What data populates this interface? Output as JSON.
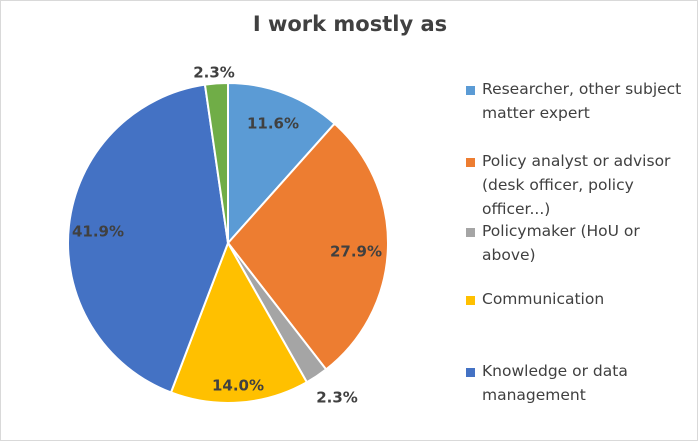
{
  "chart_data": {
    "type": "pie",
    "title": "I work mostly as",
    "categories": [
      "Researcher, other subject matter expert",
      "Policy analyst or advisor (desk officer, policy officer...)",
      "Policymaker (HoU or above)",
      "Communication",
      "Knowledge or data management",
      ""
    ],
    "values": [
      11.6,
      27.9,
      2.3,
      14.0,
      41.9,
      2.3
    ],
    "labels": [
      "11.6%",
      "27.9%",
      "2.3%",
      "14.0%",
      "41.9%",
      "2.3%"
    ],
    "colors": [
      "#5b9bd5",
      "#ed7d31",
      "#a5a5a5",
      "#ffc000",
      "#4472c4",
      "#70ad47"
    ],
    "legend": {
      "position": "right",
      "entries": [
        {
          "label": "Researcher, other subject matter expert",
          "color": "#5b9bd5"
        },
        {
          "label": "Policy analyst or advisor (desk officer, policy officer...)",
          "color": "#ed7d31"
        },
        {
          "label": "Policymaker (HoU or above)",
          "color": "#a5a5a5"
        },
        {
          "label": "Communication",
          "color": "#ffc000"
        },
        {
          "label": "Knowledge or data management",
          "color": "#4472c4"
        }
      ]
    }
  }
}
